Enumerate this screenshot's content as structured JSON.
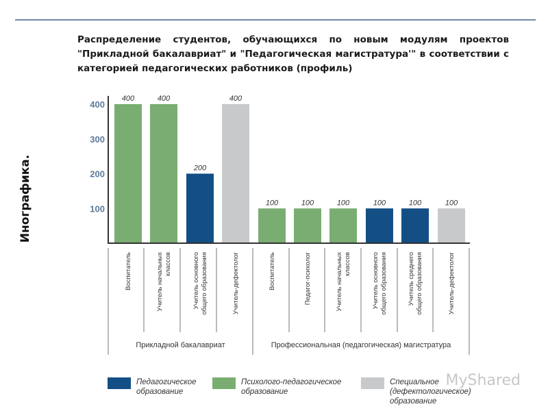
{
  "title": "Распределение студентов, обучающихся по новым модулям проектов \"Прикладной бакалавриат\" и \"Педагогическая магистратура'\" в соответствии с категорией педагогических работников (профиль)",
  "side_label": "Инографика.",
  "watermark": "MyShared",
  "colors": {
    "pedagogical": "#134f85",
    "psych": "#7aad72",
    "special": "#c8c9cb",
    "axis_tick": "#5c7a9a",
    "top_rule": "#6f8aa6"
  },
  "chart_data": {
    "type": "bar",
    "title": "Распределение студентов, обучающихся по новым модулям проектов \"Прикладной бакалавриат\" и \"Педагогическая магистратура'\" в соответствии с категорией педагогических работников (профиль)",
    "yticks": [
      100,
      200,
      300,
      400
    ],
    "ylim": [
      0,
      400
    ],
    "grid": false,
    "categories": [
      [
        "Воспитатель"
      ],
      [
        "Учитель начальных",
        "классов"
      ],
      [
        "Учитель основного",
        "общего образования"
      ],
      [
        "Учитель-дефектолог"
      ],
      [
        "Воспитатель"
      ],
      [
        "Педагог-психолог"
      ],
      [
        "Учитель начальных",
        "классов"
      ],
      [
        "Учитель основного",
        "общего образования"
      ],
      [
        "Учитель среднего",
        "общего образования"
      ],
      [
        "Учитель-дефектолог"
      ]
    ],
    "values": [
      400,
      400,
      200,
      400,
      100,
      100,
      100,
      100,
      100,
      100
    ],
    "value_labels": [
      "400",
      "400",
      "200",
      "400",
      "100",
      "100",
      "100",
      "100",
      "100",
      "100"
    ],
    "bar_series": [
      "psych",
      "psych",
      "pedagogical",
      "special",
      "psych",
      "psych",
      "psych",
      "pedagogical",
      "pedagogical",
      "special"
    ],
    "groups": [
      {
        "label": "Прикладной бакалавриат",
        "start": 0,
        "end": 3
      },
      {
        "label": "Профессиональная (педагогическая) магистратура",
        "start": 4,
        "end": 9
      }
    ],
    "series": [
      {
        "key": "pedagogical",
        "color": "#134f85",
        "legend": [
          "Педагогическое",
          "образование"
        ]
      },
      {
        "key": "psych",
        "color": "#7aad72",
        "legend": [
          "Психолого-педагогическое",
          "образование"
        ]
      },
      {
        "key": "special",
        "color": "#c8c9cb",
        "legend": [
          "Специальное",
          "(дефектологическое)",
          "образование"
        ]
      }
    ],
    "legend_position": "bottom"
  }
}
